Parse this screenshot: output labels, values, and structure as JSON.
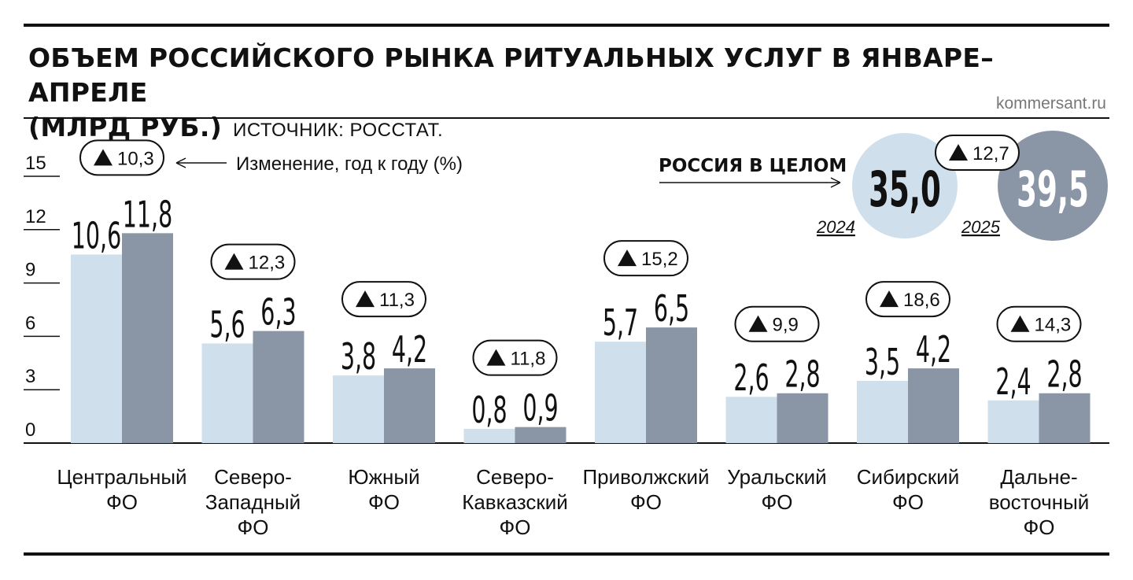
{
  "title_line1": "ОБЪЕМ РОССИЙСКОГО РЫНКА РИТУАЛЬНЫХ УСЛУГ В ЯНВАРЕ–АПРЕЛЕ",
  "title_line2": "(МЛРД РУБ.)",
  "source": "ИСТОЧНИК: РОССТАТ.",
  "site": "kommersant.ru",
  "change_note": "Изменение, год к году (%)",
  "russia": {
    "label": "РОССИЯ В ЦЕЛОМ",
    "value_2024": "35,0",
    "value_2025": "39,5",
    "change": "12,7",
    "year_2024": "2024",
    "year_2025": "2025"
  },
  "colors": {
    "y2024": "#cfdfec",
    "y2025": "#8a96a5",
    "text": "#111111"
  },
  "chart_data": {
    "type": "bar",
    "ylim": [
      0,
      15
    ],
    "yticks": [
      0,
      3,
      6,
      9,
      12,
      15
    ],
    "categories": [
      [
        "Центральный",
        "ФО"
      ],
      [
        "Северо-",
        "Западный",
        "ФО"
      ],
      [
        "Южный",
        "ФО"
      ],
      [
        "Северо-",
        "Кавказский",
        "ФО"
      ],
      [
        "Приволжский",
        "ФО"
      ],
      [
        "Уральский",
        "ФО"
      ],
      [
        "Сибирский",
        "ФО"
      ],
      [
        "Дальне-",
        "восточный",
        "ФО"
      ]
    ],
    "series": [
      {
        "values": [
          10.6,
          5.6,
          3.8,
          0.8,
          5.7,
          2.6,
          3.5,
          2.4
        ],
        "labels": [
          "10,6",
          "5,6",
          "3,8",
          "0,8",
          "5,7",
          "2,6",
          "3,5",
          "2,4"
        ]
      },
      {
        "values": [
          11.8,
          6.3,
          4.2,
          0.9,
          6.5,
          2.8,
          4.2,
          2.8
        ],
        "labels": [
          "11,8",
          "6,3",
          "4,2",
          "0,9",
          "6,5",
          "2,8",
          "4,2",
          "2,8"
        ]
      }
    ],
    "changes": [
      "10,3",
      "12,3",
      "11,3",
      "11,8",
      "15,2",
      "9,9",
      "18,6",
      "14,3"
    ]
  }
}
